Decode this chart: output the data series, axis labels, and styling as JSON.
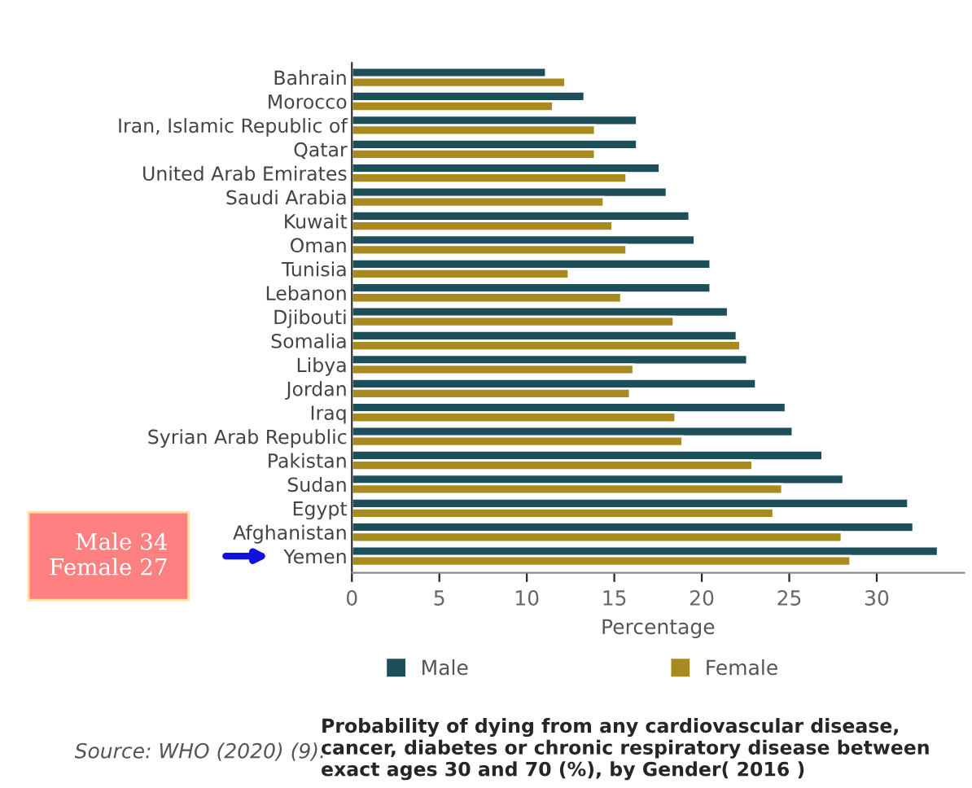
{
  "chart_data": {
    "type": "bar",
    "orientation": "horizontal",
    "xlabel": "Percentage",
    "categories": [
      "Bahrain",
      "Morocco",
      "Iran, Islamic Republic of",
      "Qatar",
      "United Arab Emirates",
      "Saudi Arabia",
      "Kuwait",
      "Oman",
      "Tunisia",
      "Lebanon",
      "Djibouti",
      "Somalia",
      "Libya",
      "Jordan",
      "Iraq",
      "Syrian Arab Republic",
      "Pakistan",
      "Sudan",
      "Egypt",
      "Afghanistan",
      "Yemen"
    ],
    "series": [
      {
        "name": "Male",
        "color": "#1c4f5a",
        "values": [
          11.1,
          13.3,
          16.3,
          16.3,
          17.6,
          18.0,
          19.3,
          19.6,
          20.5,
          20.5,
          21.5,
          22.0,
          22.6,
          23.1,
          24.8,
          25.2,
          26.9,
          28.1,
          31.8,
          32.1,
          33.5
        ]
      },
      {
        "name": "Female",
        "color": "#a88a1e",
        "values": [
          12.2,
          11.5,
          13.9,
          13.9,
          15.7,
          14.4,
          14.9,
          15.7,
          12.4,
          15.4,
          18.4,
          22.2,
          16.1,
          15.9,
          18.5,
          18.9,
          22.9,
          24.6,
          24.1,
          28.0,
          28.5
        ]
      }
    ],
    "xlim": [
      0,
      35
    ],
    "xticks": [
      0,
      5,
      10,
      15,
      20,
      25,
      30
    ],
    "grid": false,
    "legend": "bottom",
    "annotations": [
      "Male 34\nFemale 27",
      "Source: WHO (2020) (9).",
      "Probability of dying from any cardiovascular disease, cancer, diabetes or chronic respiratory disease between exact ages 30 and 70 (%), by Gender( 2016 )"
    ]
  }
}
